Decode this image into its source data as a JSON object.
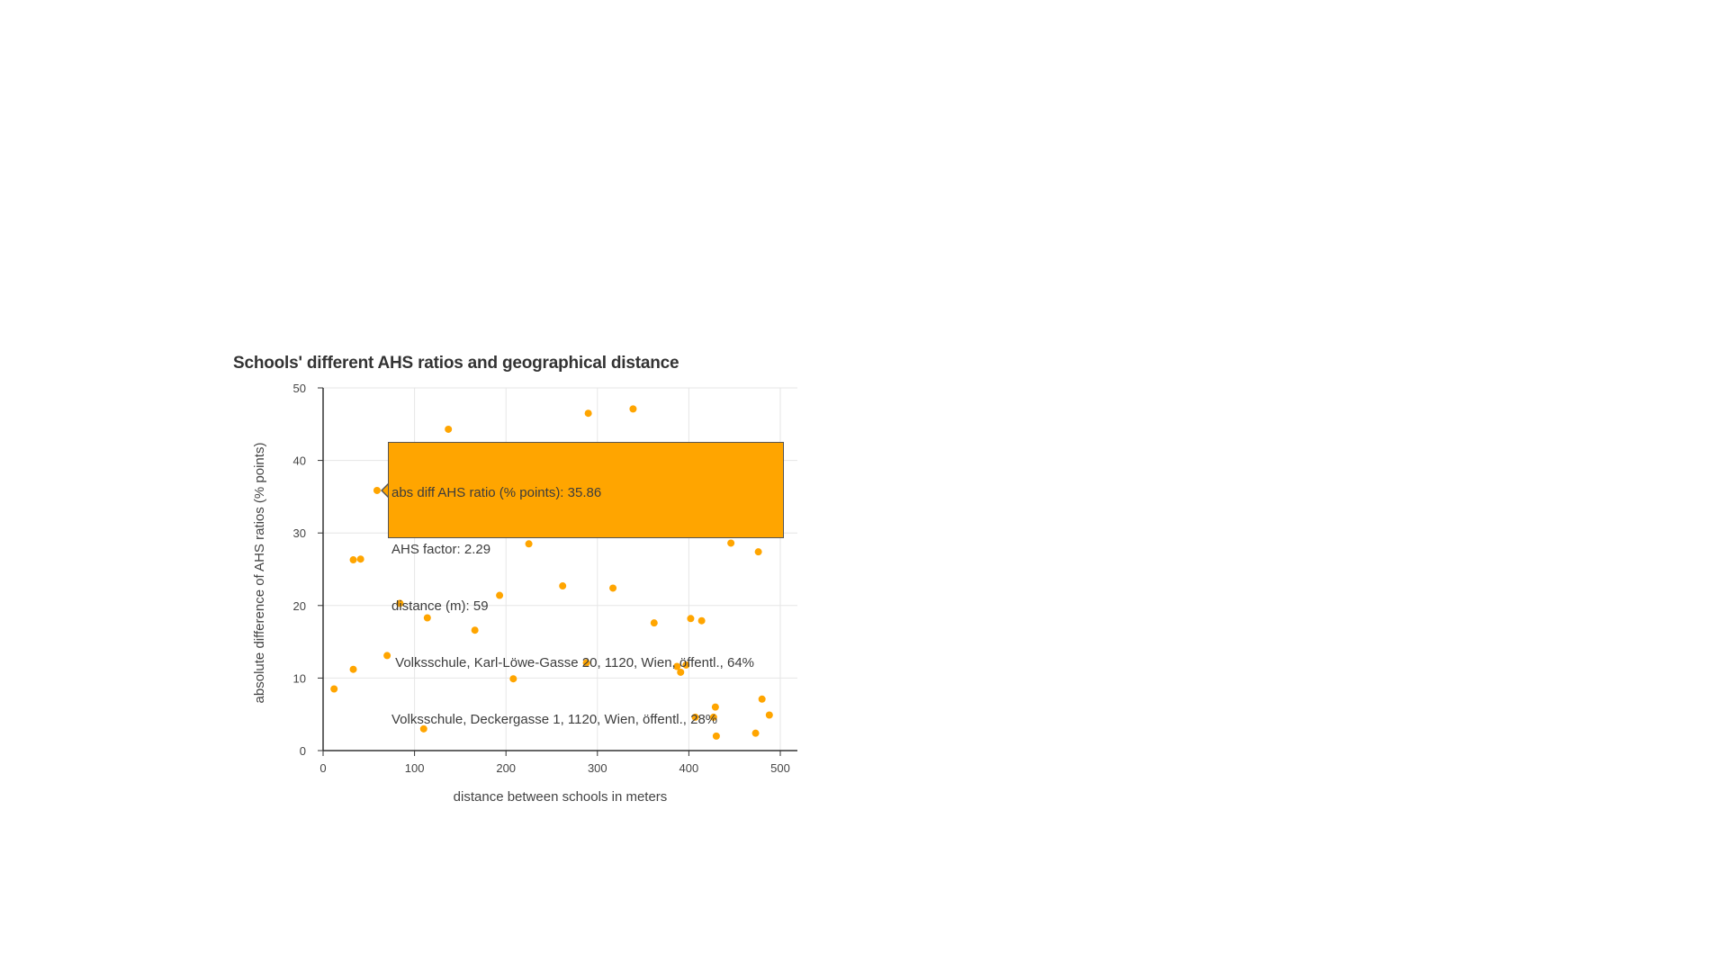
{
  "chart_data": {
    "type": "scatter",
    "title": "Schools' different AHS ratios and geographical distance",
    "xlabel": "distance between schools in meters",
    "ylabel": "absolute difference of AHS ratios (% points)",
    "xlim": [
      0,
      520
    ],
    "ylim": [
      0,
      50
    ],
    "xticks": [
      0,
      100,
      200,
      300,
      400,
      500
    ],
    "yticks": [
      0,
      10,
      20,
      30,
      40,
      50
    ],
    "grid": true,
    "point_color": "#ffa500",
    "points": [
      {
        "x": 12,
        "y": 8.5
      },
      {
        "x": 33,
        "y": 11.2
      },
      {
        "x": 33,
        "y": 26.3
      },
      {
        "x": 41,
        "y": 26.4
      },
      {
        "x": 59,
        "y": 35.86
      },
      {
        "x": 70,
        "y": 13.1
      },
      {
        "x": 84,
        "y": 20.3
      },
      {
        "x": 110,
        "y": 3.0
      },
      {
        "x": 114,
        "y": 18.3
      },
      {
        "x": 137,
        "y": 44.3
      },
      {
        "x": 166,
        "y": 16.6
      },
      {
        "x": 193,
        "y": 21.4
      },
      {
        "x": 208,
        "y": 9.9
      },
      {
        "x": 225,
        "y": 28.5
      },
      {
        "x": 262,
        "y": 22.7
      },
      {
        "x": 288,
        "y": 12.1
      },
      {
        "x": 290,
        "y": 46.5
      },
      {
        "x": 317,
        "y": 22.4
      },
      {
        "x": 339,
        "y": 47.1
      },
      {
        "x": 362,
        "y": 17.6
      },
      {
        "x": 387,
        "y": 11.6
      },
      {
        "x": 391,
        "y": 10.8
      },
      {
        "x": 397,
        "y": 11.8
      },
      {
        "x": 402,
        "y": 18.2
      },
      {
        "x": 407,
        "y": 4.6
      },
      {
        "x": 414,
        "y": 17.9
      },
      {
        "x": 427,
        "y": 4.6
      },
      {
        "x": 429,
        "y": 6.0
      },
      {
        "x": 430,
        "y": 2.0
      },
      {
        "x": 446,
        "y": 28.6
      },
      {
        "x": 473,
        "y": 2.4
      },
      {
        "x": 476,
        "y": 27.4
      },
      {
        "x": 480,
        "y": 7.1
      },
      {
        "x": 488,
        "y": 4.9
      }
    ],
    "tooltip": {
      "lines": [
        "abs diff AHS ratio (% points): 35.86",
        "AHS factor: 2.29",
        "distance (m): 59",
        " Volksschule, Karl-Löwe-Gasse 20, 1120, Wien, öffentl., 64%",
        "Volksschule, Deckergasse 1, 1120, Wien, öffentl., 28%"
      ]
    }
  }
}
